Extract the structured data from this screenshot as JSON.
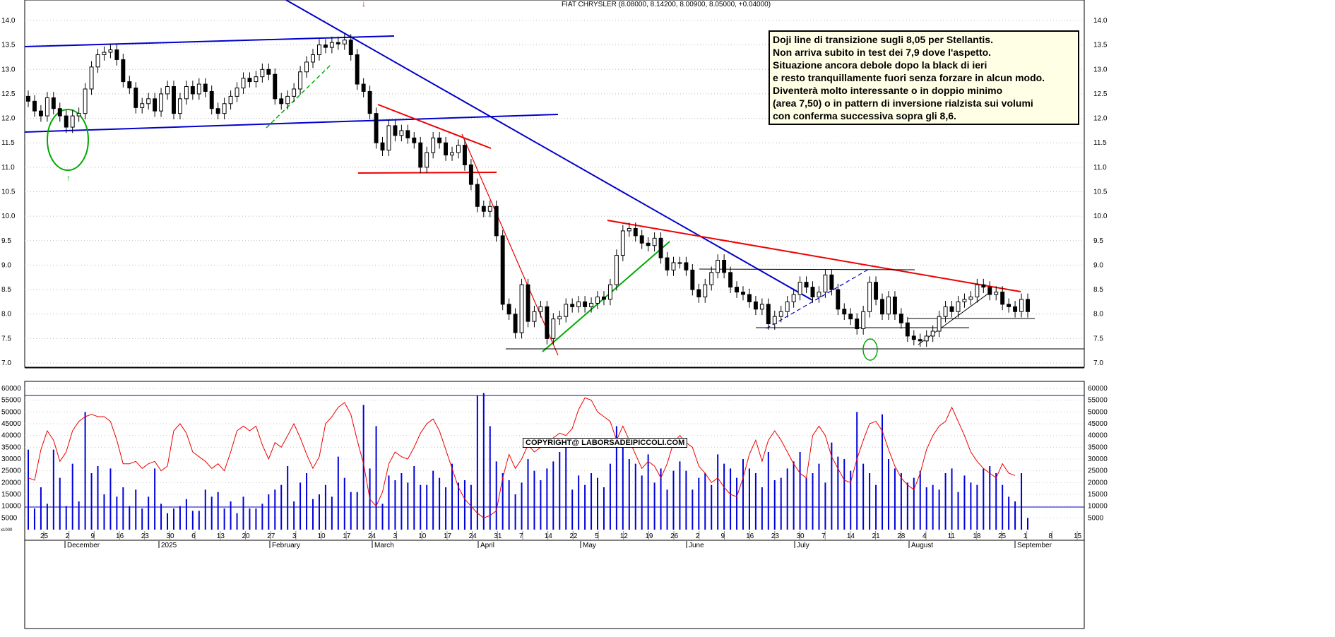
{
  "title": "FIAT CHRYSLER (8.08000, 8.14200, 8.00900, 8.05000, +0.04000)",
  "copyright": "COPYRIGHT@ LABORSADEIPICCOLI.COM",
  "note_lines": [
    "Doji line di transizione sugli 8,05 per Stellantis.",
    "Non arriva subito in test dei 7,9 dove l'aspetto.",
    "Situazione ancora debole dopo la black di ieri",
    "e resto tranquillamente fuori senza forzare in alcun modo.",
    "Diventerà molto interessante o in doppio minimo",
    "(area 7,50) o in pattern di inversione rialzista sui volumi",
    "con conferma successiva sopra gli 8,6."
  ],
  "colors": {
    "up": "#ffffff",
    "down": "#000000",
    "blue": "#0000cc",
    "red": "#ee0000",
    "green": "#00aa00",
    "volume": "#0000dd",
    "grid": "#999999"
  },
  "chart_data": [
    {
      "type": "candlestick",
      "title": "FIAT CHRYSLER (8.08000, 8.14200, 8.00900, 8.05000, +0.04000)",
      "ylim": [
        6.8,
        14.3
      ],
      "yticks": [
        7.0,
        7.5,
        8.0,
        8.5,
        9.0,
        9.5,
        10.0,
        10.5,
        11.0,
        11.5,
        12.0,
        12.5,
        13.0,
        13.5,
        14.0
      ],
      "x_day_labels": [
        "25",
        "2",
        "9",
        "16",
        "23",
        "30",
        "6",
        "13",
        "20",
        "27",
        "3",
        "10",
        "17",
        "24",
        "3",
        "10",
        "17",
        "24",
        "31",
        "7",
        "14",
        "22",
        "5",
        "12",
        "19",
        "26",
        "2",
        "9",
        "16",
        "23",
        "30",
        "7",
        "14",
        "21",
        "28",
        "4",
        "11",
        "18",
        "25",
        "1",
        "8",
        "15"
      ],
      "x_month_labels": [
        "December",
        "2025",
        "February",
        "March",
        "April",
        "May",
        "June",
        "July",
        "August",
        "September"
      ],
      "closes": [
        12.35,
        12.15,
        12.05,
        12.42,
        12.2,
        12.05,
        11.82,
        12.05,
        12.1,
        12.6,
        13.05,
        13.3,
        13.35,
        13.4,
        13.2,
        12.75,
        12.62,
        12.22,
        12.3,
        12.4,
        12.15,
        12.5,
        12.65,
        12.1,
        12.4,
        12.65,
        12.5,
        12.7,
        12.55,
        12.2,
        12.1,
        12.3,
        12.45,
        12.62,
        12.82,
        12.75,
        12.85,
        13.0,
        12.9,
        12.4,
        12.3,
        12.45,
        12.6,
        12.95,
        13.15,
        13.3,
        13.5,
        13.45,
        13.55,
        13.52,
        13.6,
        13.3,
        12.7,
        12.55,
        12.1,
        11.5,
        11.35,
        11.85,
        11.65,
        11.75,
        11.6,
        11.5,
        11.0,
        11.3,
        11.6,
        11.5,
        11.25,
        11.3,
        11.45,
        11.05,
        10.65,
        10.2,
        10.1,
        10.2,
        9.6,
        8.2,
        8.0,
        7.62,
        8.6,
        7.85,
        8.05,
        8.15,
        7.5,
        7.9,
        7.95,
        8.2,
        8.15,
        8.25,
        8.15,
        8.22,
        8.35,
        8.3,
        8.6,
        9.2,
        9.7,
        9.75,
        9.6,
        9.45,
        9.4,
        9.55,
        9.15,
        8.9,
        9.05,
        9.05,
        8.9,
        8.5,
        8.35,
        8.6,
        8.85,
        9.1,
        8.85,
        8.55,
        8.45,
        8.4,
        8.25,
        8.1,
        8.2,
        7.8,
        7.95,
        8.05,
        8.25,
        8.4,
        8.65,
        8.55,
        8.35,
        8.45,
        8.8,
        8.5,
        8.1,
        8.0,
        7.9,
        7.7,
        8.05,
        8.65,
        8.3,
        8.0,
        8.35,
        8.0,
        7.82,
        7.55,
        7.48,
        7.45,
        7.55,
        7.65,
        7.95,
        8.15,
        8.05,
        8.25,
        8.3,
        8.35,
        8.6,
        8.55,
        8.4,
        8.45,
        8.2,
        8.15,
        8.05,
        8.3,
        8.05
      ],
      "volume_ylim": [
        0,
        62000
      ],
      "volume_yticks": [
        5000,
        10000,
        15000,
        20000,
        25000,
        30000,
        35000,
        40000,
        45000,
        50000,
        55000,
        60000
      ],
      "volume_unit": "x1000",
      "volumes": [
        34000,
        9000,
        18000,
        11000,
        34000,
        22000,
        10000,
        28000,
        12000,
        50000,
        24000,
        27000,
        15000,
        26000,
        14000,
        18000,
        10000,
        17000,
        9000,
        14000,
        26000,
        11000,
        7000,
        9000,
        10000,
        13000,
        8000,
        8000,
        17000,
        14000,
        16000,
        9000,
        12000,
        7000,
        14000,
        9000,
        9000,
        11000,
        15000,
        17000,
        19000,
        27000,
        12000,
        20000,
        24000,
        13000,
        15000,
        19000,
        14000,
        31000,
        22000,
        16000,
        16000,
        53000,
        26000,
        44000,
        11000,
        23000,
        21000,
        24000,
        20000,
        27000,
        19000,
        19000,
        25000,
        22000,
        18000,
        28000,
        20000,
        21000,
        19000,
        57000,
        58000,
        44000,
        29000,
        24000,
        21000,
        15000,
        20000,
        30000,
        25000,
        21000,
        26000,
        29000,
        33000,
        35000,
        17000,
        23000,
        19000,
        24000,
        22000,
        18000,
        28000,
        44000,
        38000,
        30000,
        28000,
        23000,
        32000,
        20000,
        26000,
        17000,
        25000,
        29000,
        25000,
        17000,
        22000,
        24000,
        19000,
        32000,
        28000,
        26000,
        22000,
        30000,
        26000,
        24000,
        18000,
        33000,
        21000,
        22000,
        26000,
        29000,
        33000,
        22000,
        24000,
        28000,
        20000,
        37000,
        31000,
        30000,
        25000,
        50000,
        28000,
        24000,
        19000,
        49000,
        30000,
        26000,
        24000,
        20000,
        22000,
        25000,
        18000,
        19000,
        17000,
        24000,
        26000,
        16000,
        23000,
        20000,
        19000,
        26000,
        27000,
        24000,
        19000,
        14000,
        12000,
        24000,
        5000
      ],
      "volume_avg_line": [
        22000,
        21000,
        34000,
        42000,
        38000,
        29000,
        33000,
        42000,
        46000,
        48000,
        49000,
        48000,
        48000,
        46000,
        38000,
        28000,
        28000,
        29000,
        26000,
        28000,
        29000,
        25000,
        27000,
        42000,
        45000,
        41000,
        33000,
        31000,
        29000,
        26000,
        28000,
        25000,
        33000,
        42000,
        44000,
        42000,
        44000,
        36000,
        30000,
        37000,
        35000,
        40000,
        45000,
        39000,
        32000,
        26000,
        31000,
        45000,
        48000,
        52000,
        54000,
        49000,
        38000,
        28000,
        13000,
        10000,
        16000,
        28000,
        33000,
        31000,
        30000,
        35000,
        41000,
        45000,
        47000,
        42000,
        34000,
        26000,
        18000,
        13000,
        10000,
        7000,
        5000,
        6000,
        8000,
        22000,
        32000,
        26000,
        30000,
        36000,
        33000,
        35000,
        37000,
        39000,
        41000,
        40000,
        43000,
        51000,
        56000,
        55000,
        50000,
        48000,
        46000,
        38000,
        44000,
        38000,
        32000,
        26000,
        29000,
        27000,
        22000,
        28000,
        37000,
        40000,
        37000,
        35000,
        27000,
        24000,
        20000,
        22000,
        18000,
        15000,
        14000,
        22000,
        32000,
        38000,
        29000,
        38000,
        42000,
        38000,
        33000,
        28000,
        24000,
        22000,
        40000,
        44000,
        40000,
        31000,
        26000,
        21000,
        20000,
        30000,
        38000,
        45000,
        46000,
        42000,
        34000,
        27000,
        22000,
        19000,
        17000,
        24000,
        34000,
        40000,
        44000,
        46000,
        52000,
        46000,
        40000,
        33000,
        29000,
        26000,
        24000,
        22000,
        28000,
        24000,
        23000
      ]
    }
  ]
}
